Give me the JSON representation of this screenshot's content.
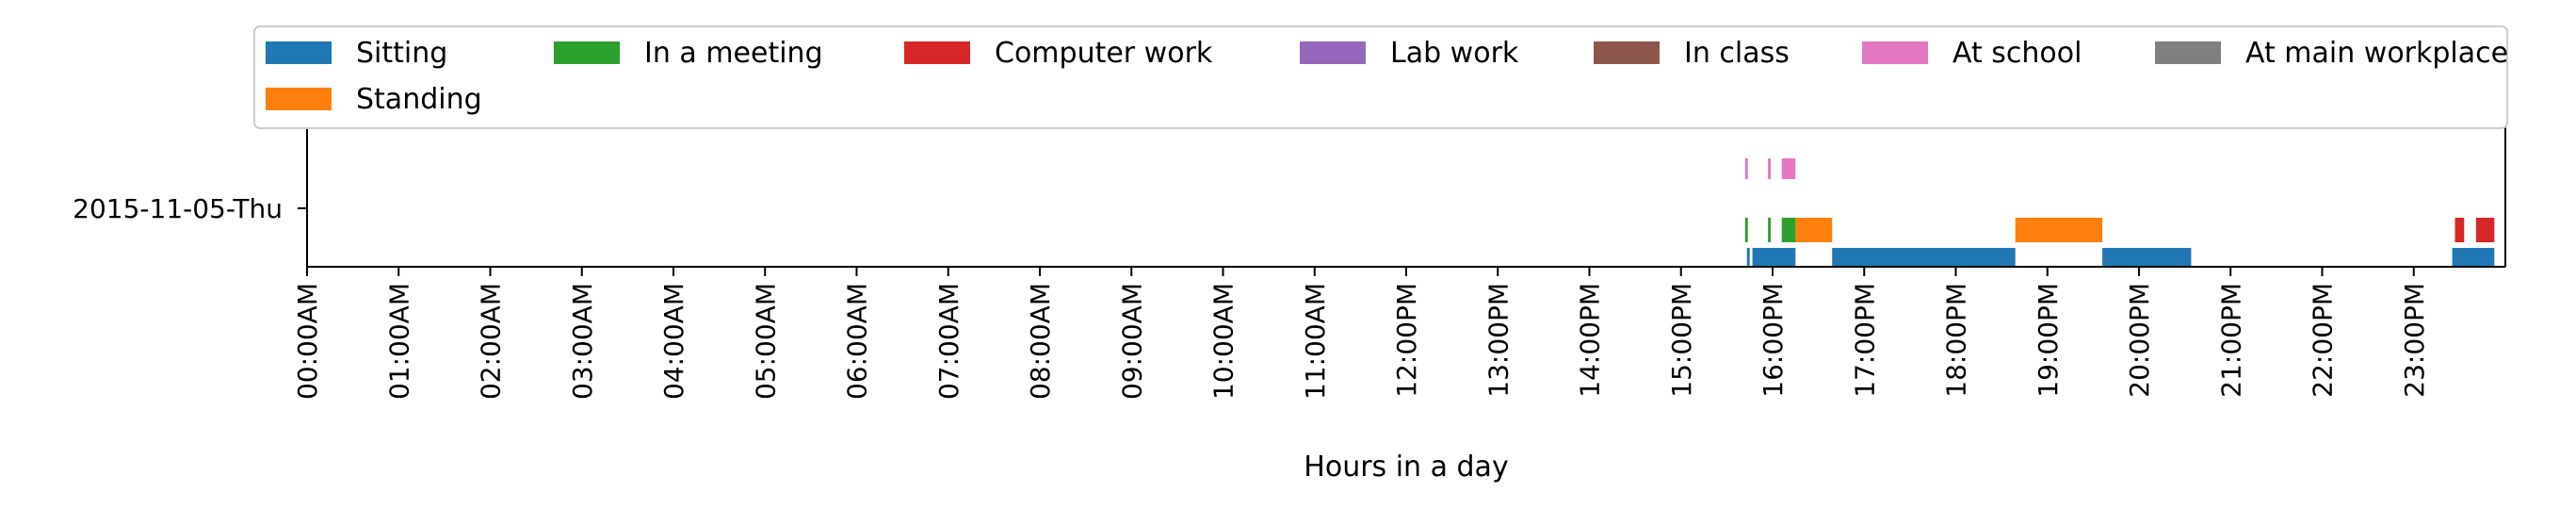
{
  "chart_data": {
    "type": "timeline",
    "xlabel": "Hours in a day",
    "xlim": [
      0,
      24
    ],
    "x_tick_labels": [
      "00:00AM",
      "01:00AM",
      "02:00AM",
      "03:00AM",
      "04:00AM",
      "05:00AM",
      "06:00AM",
      "07:00AM",
      "08:00AM",
      "09:00AM",
      "10:00AM",
      "11:00AM",
      "12:00PM",
      "13:00PM",
      "14:00PM",
      "15:00PM",
      "16:00PM",
      "17:00PM",
      "18:00PM",
      "19:00PM",
      "20:00PM",
      "21:00PM",
      "22:00PM",
      "23:00PM"
    ],
    "y_tick_labels": [
      "2015-11-05-Thu"
    ],
    "legend_position": "top",
    "grid": false,
    "series": [
      {
        "name": "Sitting",
        "color": "#1f77b4",
        "lane": "bottom",
        "intervals": [
          [
            15.72,
            15.75
          ],
          [
            15.78,
            16.25
          ],
          [
            16.65,
            18.65
          ],
          [
            19.6,
            20.57
          ],
          [
            23.42,
            23.88
          ]
        ]
      },
      {
        "name": "Standing",
        "color": "#ff7f0e",
        "lane": "middle",
        "intervals": [
          [
            16.25,
            16.65
          ],
          [
            18.65,
            19.6
          ]
        ]
      },
      {
        "name": "In a meeting",
        "color": "#2ca02c",
        "lane": "middle",
        "intervals": [
          [
            15.7,
            15.73
          ],
          [
            15.95,
            15.98
          ],
          [
            16.1,
            16.25
          ]
        ]
      },
      {
        "name": "Computer work",
        "color": "#d62728",
        "lane": "middle",
        "intervals": [
          [
            23.45,
            23.55
          ],
          [
            23.68,
            23.88
          ]
        ]
      },
      {
        "name": "Lab work",
        "color": "#9467bd",
        "lane": "top",
        "intervals": []
      },
      {
        "name": "In class",
        "color": "#8c564b",
        "lane": "top",
        "intervals": []
      },
      {
        "name": "At school",
        "color": "#e377c2",
        "lane": "top",
        "intervals": [
          [
            15.7,
            15.73
          ],
          [
            15.95,
            15.98
          ],
          [
            16.1,
            16.25
          ]
        ]
      },
      {
        "name": "At main workplace",
        "color": "#7f7f7f",
        "lane": "top",
        "intervals": []
      }
    ],
    "legend": {
      "rows": [
        [
          "Sitting",
          "In a meeting",
          "Computer work",
          "Lab work",
          "In class",
          "At school",
          "At main workplace"
        ],
        [
          "Standing"
        ]
      ]
    }
  }
}
